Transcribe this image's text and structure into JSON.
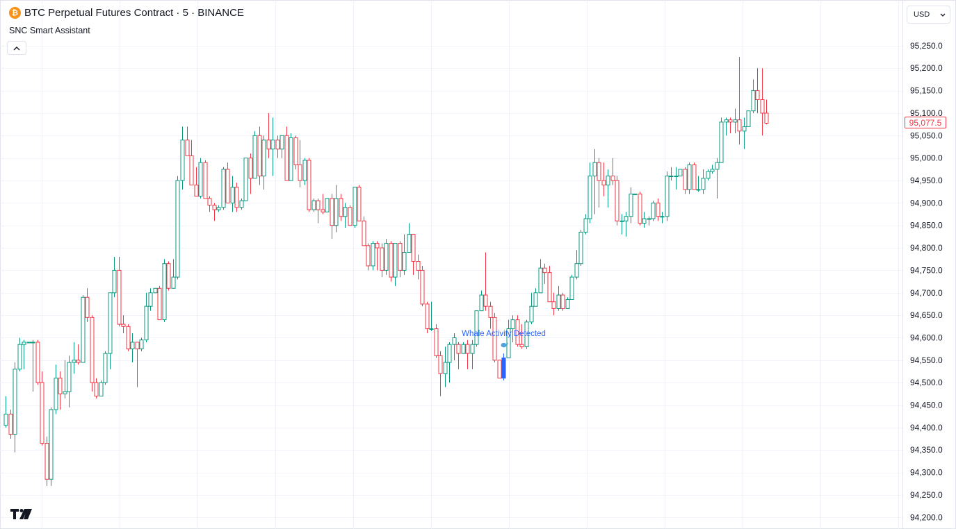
{
  "header": {
    "title": "BTC Perpetual Futures Contract · 5 · BINANCE",
    "symbol_icon": "bitcoin-icon"
  },
  "indicator": {
    "name": "SNC Smart Assistant",
    "collapse_icon": "chevron-up-icon"
  },
  "currency": {
    "value": "USD",
    "icon": "chevron-down-icon"
  },
  "last_price": {
    "label": "95,077.5",
    "color": "#f23645"
  },
  "colors": {
    "up": "#089981",
    "down": "#f23645",
    "signal": "#2962ff",
    "grid": "#f0f3fa",
    "background": "#ffffff"
  },
  "marker": {
    "text": "Whale Activity Detected",
    "icon": "whale-icon"
  },
  "branding": {
    "logo": "tradingview-logo"
  },
  "chart_data": {
    "type": "candlestick",
    "ylim": [
      94185,
      95290
    ],
    "y_ticks": [
      "95,250.0",
      "95,200.0",
      "95,150.0",
      "95,100.0",
      "95,050.0",
      "95,000.0",
      "94,950.0",
      "94,900.0",
      "94,850.0",
      "94,800.0",
      "94,750.0",
      "94,700.0",
      "94,650.0",
      "94,600.0",
      "94,550.0",
      "94,500.0",
      "94,450.0",
      "94,400.0",
      "94,350.0",
      "94,300.0",
      "94,250.0",
      "94,200.0"
    ],
    "y_tick_values": [
      95250,
      95200,
      95150,
      95100,
      95050,
      95000,
      94950,
      94900,
      94850,
      94800,
      94750,
      94700,
      94650,
      94600,
      94550,
      94500,
      94450,
      94400,
      94350,
      94300,
      94250,
      94200
    ],
    "signal_index": 110,
    "candles": [
      [
        94405,
        94430,
        94470,
        94400
      ],
      [
        94430,
        94385,
        94440,
        94375
      ],
      [
        94385,
        94530,
        94545,
        94345
      ],
      [
        94530,
        94585,
        94600,
        94525
      ],
      [
        94585,
        94590,
        94595,
        94530
      ],
      [
        94590,
        94590,
        94590,
        94590
      ],
      [
        94590,
        94590,
        94595,
        94480
      ],
      [
        94590,
        94500,
        94595,
        94495
      ],
      [
        94500,
        94365,
        94525,
        94360
      ],
      [
        94365,
        94285,
        94380,
        94270
      ],
      [
        94285,
        94440,
        94445,
        94270
      ],
      [
        94440,
        94510,
        94540,
        94430
      ],
      [
        94510,
        94475,
        94525,
        94440
      ],
      [
        94475,
        94480,
        94550,
        94465
      ],
      [
        94480,
        94545,
        94560,
        94445
      ],
      [
        94545,
        94550,
        94590,
        94520
      ],
      [
        94550,
        94545,
        94585,
        94540
      ],
      [
        94545,
        94690,
        94695,
        94545
      ],
      [
        94690,
        94645,
        94710,
        94635
      ],
      [
        94645,
        94500,
        94650,
        94480
      ],
      [
        94500,
        94470,
        94510,
        94465
      ],
      [
        94470,
        94500,
        94505,
        94470
      ],
      [
        94500,
        94565,
        94570,
        94495
      ],
      [
        94565,
        94700,
        94700,
        94530
      ],
      [
        94700,
        94750,
        94780,
        94690
      ],
      [
        94750,
        94630,
        94780,
        94625
      ],
      [
        94630,
        94625,
        94650,
        94610
      ],
      [
        94625,
        94575,
        94630,
        94570
      ],
      [
        94575,
        94590,
        94610,
        94545
      ],
      [
        94590,
        94575,
        94590,
        94490
      ],
      [
        94575,
        94595,
        94600,
        94570
      ],
      [
        94595,
        94670,
        94700,
        94590
      ],
      [
        94670,
        94700,
        94710,
        94660
      ],
      [
        94700,
        94710,
        94710,
        94700
      ],
      [
        94710,
        94640,
        94715,
        94640
      ],
      [
        94640,
        94765,
        94775,
        94635
      ],
      [
        94765,
        94710,
        94770,
        94705
      ],
      [
        94710,
        94735,
        94775,
        94730
      ],
      [
        94735,
        94950,
        94960,
        94730
      ],
      [
        94950,
        95040,
        95070,
        94930
      ],
      [
        95040,
        95005,
        95070,
        95005
      ],
      [
        95005,
        94940,
        95040,
        94940
      ],
      [
        94940,
        94915,
        94980,
        94915
      ],
      [
        94915,
        94990,
        95000,
        94910
      ],
      [
        94990,
        94910,
        94995,
        94910
      ],
      [
        94910,
        94895,
        94915,
        94880
      ],
      [
        94895,
        94885,
        94900,
        94860
      ],
      [
        94885,
        94890,
        94895,
        94880
      ],
      [
        94890,
        94975,
        94980,
        94885
      ],
      [
        94975,
        94900,
        94990,
        94900
      ],
      [
        94900,
        94935,
        94960,
        94880
      ],
      [
        94935,
        94890,
        94945,
        94880
      ],
      [
        94890,
        94905,
        94910,
        94885
      ],
      [
        94905,
        95000,
        95000,
        94905
      ],
      [
        95000,
        94955,
        95010,
        94920
      ],
      [
        94955,
        95050,
        95060,
        94955
      ],
      [
        95050,
        94960,
        95070,
        94940
      ],
      [
        94960,
        95040,
        95050,
        94930
      ],
      [
        95040,
        95020,
        95100,
        95000
      ],
      [
        95020,
        95040,
        95090,
        94960
      ],
      [
        95040,
        95020,
        95050,
        95000
      ],
      [
        95020,
        95050,
        95050,
        95000
      ],
      [
        95050,
        94950,
        95070,
        94950
      ],
      [
        94950,
        95045,
        95055,
        94950
      ],
      [
        95045,
        94985,
        95050,
        94975
      ],
      [
        94985,
        94950,
        95040,
        94935
      ],
      [
        94950,
        94995,
        95000,
        94940
      ],
      [
        94995,
        94885,
        95000,
        94880
      ],
      [
        94885,
        94905,
        94910,
        94880
      ],
      [
        94905,
        94885,
        94910,
        94855
      ],
      [
        94885,
        94880,
        94920,
        94875
      ],
      [
        94880,
        94910,
        94910,
        94880
      ],
      [
        94910,
        94850,
        94920,
        94820
      ],
      [
        94850,
        94910,
        94940,
        94835
      ],
      [
        94910,
        94870,
        94920,
        94860
      ],
      [
        94870,
        94890,
        94900,
        94845
      ],
      [
        94890,
        94850,
        94895,
        94850
      ],
      [
        94850,
        94935,
        94935,
        94845
      ],
      [
        94935,
        94860,
        94940,
        94860
      ],
      [
        94860,
        94805,
        94870,
        94805
      ],
      [
        94805,
        94760,
        94810,
        94750
      ],
      [
        94760,
        94810,
        94815,
        94750
      ],
      [
        94810,
        94800,
        94815,
        94750
      ],
      [
        94800,
        94750,
        94810,
        94735
      ],
      [
        94750,
        94810,
        94820,
        94740
      ],
      [
        94810,
        94735,
        94815,
        94725
      ],
      [
        94735,
        94810,
        94810,
        94715
      ],
      [
        94810,
        94750,
        94815,
        94735
      ],
      [
        94750,
        94790,
        94830,
        94740
      ],
      [
        94790,
        94830,
        94855,
        94790
      ],
      [
        94830,
        94770,
        94830,
        94740
      ],
      [
        94770,
        94750,
        94785,
        94730
      ],
      [
        94750,
        94675,
        94760,
        94670
      ],
      [
        94675,
        94620,
        94680,
        94610
      ],
      [
        94620,
        94620,
        94680,
        94615
      ],
      [
        94620,
        94560,
        94630,
        94555
      ],
      [
        94560,
        94520,
        94570,
        94470
      ],
      [
        94520,
        94545,
        94580,
        94490
      ],
      [
        94545,
        94585,
        94590,
        94500
      ],
      [
        94585,
        94600,
        94610,
        94550
      ],
      [
        94585,
        94565,
        94590,
        94530
      ],
      [
        94565,
        94585,
        94590,
        94565
      ],
      [
        94585,
        94565,
        94595,
        94530
      ],
      [
        94565,
        94585,
        94595,
        94530
      ],
      [
        94585,
        94660,
        94660,
        94580
      ],
      [
        94660,
        94695,
        94705,
        94660
      ],
      [
        94695,
        94670,
        94790,
        94660
      ],
      [
        94670,
        94645,
        94680,
        94620
      ],
      [
        94645,
        94550,
        94655,
        94545
      ],
      [
        94550,
        94510,
        94550,
        94510
      ],
      [
        94510,
        94555,
        94565,
        94505
      ],
      [
        94555,
        94620,
        94640,
        94555
      ],
      [
        94620,
        94640,
        94650,
        94590
      ],
      [
        94640,
        94585,
        94650,
        94580
      ],
      [
        94585,
        94580,
        94630,
        94575
      ],
      [
        94580,
        94635,
        94640,
        94575
      ],
      [
        94635,
        94670,
        94700,
        94630
      ],
      [
        94670,
        94700,
        94710,
        94670
      ],
      [
        94700,
        94755,
        94775,
        94700
      ],
      [
        94755,
        94745,
        94765,
        94720
      ],
      [
        94745,
        94680,
        94760,
        94680
      ],
      [
        94680,
        94665,
        94700,
        94650
      ],
      [
        94665,
        94695,
        94715,
        94660
      ],
      [
        94695,
        94665,
        94700,
        94660
      ],
      [
        94665,
        94685,
        94690,
        94665
      ],
      [
        94685,
        94735,
        94740,
        94685
      ],
      [
        94735,
        94765,
        94795,
        94730
      ],
      [
        94765,
        94835,
        94840,
        94760
      ],
      [
        94835,
        94865,
        94875,
        94830
      ],
      [
        94865,
        94960,
        94990,
        94855
      ],
      [
        94960,
        94990,
        95020,
        94875
      ],
      [
        94990,
        94950,
        95000,
        94890
      ],
      [
        94950,
        94940,
        94990,
        94915
      ],
      [
        94940,
        94960,
        94975,
        94890
      ],
      [
        94960,
        94950,
        95000,
        94940
      ],
      [
        94950,
        94860,
        94960,
        94850
      ],
      [
        94860,
        94860,
        94875,
        94830
      ],
      [
        94860,
        94870,
        94880,
        94825
      ],
      [
        94870,
        94920,
        94935,
        94855
      ],
      [
        94920,
        94920,
        94920,
        94920
      ],
      [
        94920,
        94855,
        94925,
        94850
      ],
      [
        94855,
        94865,
        94880,
        94845
      ],
      [
        94865,
        94865,
        94870,
        94850
      ],
      [
        94865,
        94900,
        94905,
        94860
      ],
      [
        94900,
        94870,
        94910,
        94860
      ],
      [
        94870,
        94870,
        94880,
        94855
      ],
      [
        94870,
        94960,
        94970,
        94860
      ],
      [
        94960,
        94960,
        94980,
        94950
      ],
      [
        94960,
        94960,
        94980,
        94930
      ],
      [
        94960,
        94975,
        94975,
        94960
      ],
      [
        94975,
        94930,
        94980,
        94920
      ],
      [
        94930,
        94985,
        94990,
        94920
      ],
      [
        94985,
        94930,
        94990,
        94930
      ],
      [
        94930,
        94930,
        94960,
        94925
      ],
      [
        94930,
        94955,
        94975,
        94920
      ],
      [
        94955,
        94970,
        94975,
        94950
      ],
      [
        94970,
        94975,
        94985,
        94965
      ],
      [
        94975,
        94990,
        95000,
        94910
      ],
      [
        94990,
        95080,
        95090,
        94990
      ],
      [
        95080,
        95085,
        95090,
        95050
      ],
      [
        95085,
        95080,
        95090,
        95055
      ],
      [
        95080,
        95085,
        95110,
        95055
      ],
      [
        95085,
        95060,
        95225,
        95030
      ],
      [
        95060,
        95070,
        95090,
        95020
      ],
      [
        95070,
        95105,
        95100,
        95070
      ],
      [
        95105,
        95150,
        95175,
        95100
      ],
      [
        95150,
        95130,
        95200,
        95100
      ],
      [
        95130,
        95100,
        95200,
        95050
      ],
      [
        95100,
        95077.5,
        95130,
        95075
      ]
    ]
  }
}
